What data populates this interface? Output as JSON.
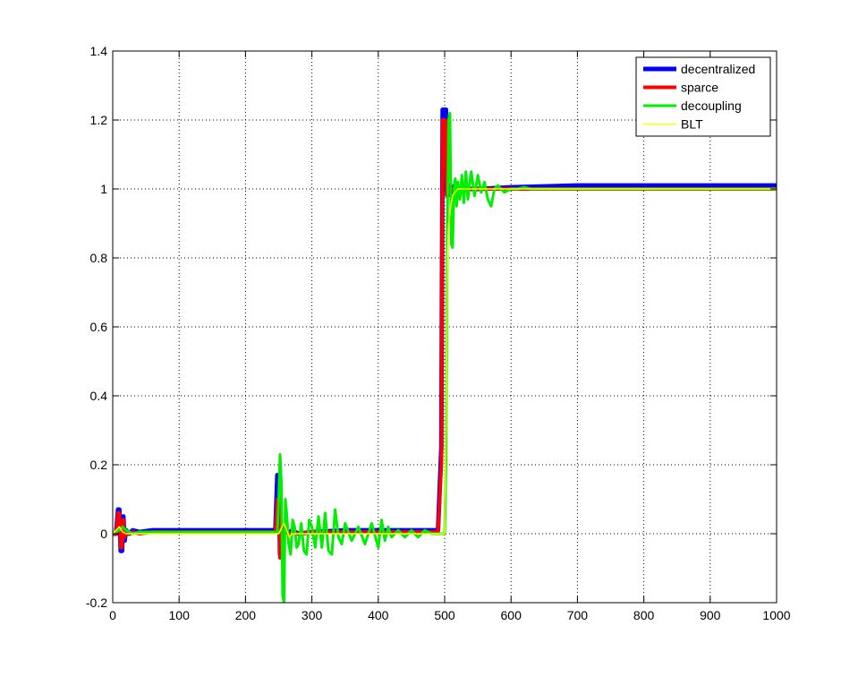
{
  "chart_data": {
    "type": "line",
    "title": "",
    "xlabel": "",
    "ylabel": "",
    "xlim": [
      0,
      1000
    ],
    "ylim": [
      -0.2,
      1.4
    ],
    "xticks": [
      0,
      100,
      200,
      300,
      400,
      500,
      600,
      700,
      800,
      900,
      1000
    ],
    "yticks": [
      -0.2,
      0,
      0.2,
      0.4,
      0.6,
      0.8,
      1,
      1.2,
      1.4
    ],
    "grid": true,
    "legend_position": "top-right",
    "series": [
      {
        "name": "decentralized",
        "color": "#0000ff",
        "x": [
          0,
          5,
          8,
          10,
          12,
          14,
          16,
          18,
          20,
          25,
          30,
          40,
          60,
          100,
          150,
          200,
          245,
          248,
          250,
          252,
          254,
          256,
          258,
          260,
          265,
          270,
          280,
          300,
          350,
          400,
          450,
          490,
          495,
          497,
          499,
          500,
          501,
          502,
          503,
          504,
          506,
          508,
          510,
          512,
          515,
          520,
          530,
          550,
          600,
          700,
          800,
          900,
          1000
        ],
        "y": [
          0,
          0,
          0.07,
          0.07,
          -0.05,
          -0.05,
          0.05,
          -0.02,
          0.01,
          0,
          0.01,
          0.005,
          0.01,
          0.01,
          0.01,
          0.01,
          0.01,
          0.17,
          0.17,
          -0.06,
          0.02,
          -0.01,
          0.005,
          0.01,
          0,
          0.01,
          0,
          0.005,
          0.01,
          0.01,
          0.01,
          0.01,
          0.25,
          1.23,
          1.23,
          1.23,
          1.23,
          1.23,
          1.0,
          0.98,
          1.01,
          1.0,
          0.99,
          1.0,
          1.01,
          1.0,
          1.0,
          1.0,
          1.005,
          1.01,
          1.01,
          1.01,
          1.01
        ]
      },
      {
        "name": "sparce",
        "color": "#ff0000",
        "x": [
          0,
          5,
          8,
          10,
          12,
          14,
          16,
          18,
          20,
          25,
          30,
          40,
          60,
          100,
          150,
          200,
          245,
          248,
          250,
          252,
          254,
          256,
          258,
          260,
          265,
          270,
          280,
          300,
          350,
          400,
          450,
          490,
          495,
          497,
          499,
          500,
          501,
          502,
          503,
          504,
          506,
          508,
          510,
          512,
          515,
          520,
          530,
          550,
          600,
          700,
          800,
          900,
          1000
        ],
        "y": [
          0,
          0,
          0.06,
          0.06,
          -0.04,
          -0.04,
          0.04,
          -0.01,
          0.005,
          0,
          0.005,
          0,
          0.005,
          0.005,
          0.005,
          0.005,
          0.005,
          0.1,
          0.1,
          -0.07,
          0.02,
          -0.02,
          0.01,
          0.005,
          0,
          0.005,
          0,
          0.005,
          0.005,
          0.005,
          0.005,
          0.005,
          0.2,
          1.2,
          1.2,
          1.2,
          1.2,
          1.1,
          0.98,
          0.99,
          1.0,
          0.99,
          1.0,
          1.0,
          1.0,
          1.0,
          1.0,
          1.0,
          1.0,
          1.0,
          1.0,
          1.0,
          1.0
        ]
      },
      {
        "name": "decoupling",
        "color": "#00ee00",
        "x": [
          0,
          5,
          10,
          15,
          20,
          25,
          30,
          40,
          60,
          100,
          150,
          200,
          248,
          250,
          252,
          254,
          256,
          258,
          260,
          262,
          265,
          268,
          271,
          274,
          277,
          280,
          284,
          288,
          292,
          296,
          300,
          305,
          310,
          315,
          320,
          325,
          330,
          335,
          340,
          345,
          350,
          360,
          370,
          380,
          390,
          400,
          405,
          410,
          415,
          420,
          430,
          440,
          450,
          460,
          470,
          480,
          490,
          495,
          500,
          502,
          504,
          506,
          508,
          510,
          512,
          514,
          516,
          518,
          520,
          523,
          526,
          529,
          532,
          535,
          540,
          545,
          550,
          555,
          560,
          565,
          570,
          575,
          580,
          590,
          600,
          610,
          620,
          630,
          640,
          650,
          700,
          800,
          900,
          1000
        ],
        "y": [
          0,
          0.005,
          0.01,
          0.02,
          0.01,
          0.005,
          0,
          0.005,
          0.005,
          0.005,
          0.005,
          0.005,
          0.005,
          0.1,
          0.23,
          0.15,
          -0.18,
          -0.2,
          0.1,
          0.06,
          -0.03,
          -0.06,
          0.04,
          0.02,
          -0.04,
          -0.03,
          0.03,
          -0.05,
          -0.06,
          0.04,
          0.02,
          -0.04,
          0.05,
          -0.04,
          0.06,
          -0.05,
          -0.06,
          0.07,
          -0.01,
          -0.03,
          0.03,
          -0.02,
          0.02,
          -0.03,
          0.03,
          -0.04,
          0.04,
          -0.02,
          0.02,
          -0.01,
          0.01,
          -0.01,
          0.01,
          -0.01,
          0.01,
          0,
          0,
          0,
          0,
          0.2,
          0.9,
          1.2,
          1.22,
          0.84,
          0.83,
          1.0,
          1.03,
          0.95,
          1.02,
          0.97,
          1.04,
          0.96,
          1.05,
          0.97,
          1.05,
          0.98,
          1.04,
          0.99,
          1.02,
          0.97,
          0.95,
          1.0,
          1.01,
          0.99,
          1.0,
          1.0,
          1.005,
          1.0,
          1.0,
          1.0,
          1.0,
          1.0,
          1.0,
          1.0
        ]
      },
      {
        "name": "BLT",
        "color": "#ffff00",
        "x": [
          0,
          5,
          10,
          15,
          20,
          30,
          40,
          60,
          100,
          150,
          200,
          250,
          255,
          258,
          262,
          266,
          270,
          280,
          300,
          350,
          400,
          450,
          490,
          495,
          500,
          502,
          504,
          506,
          508,
          510,
          512,
          515,
          520,
          525,
          530,
          540,
          550,
          600,
          700,
          800,
          900,
          1000
        ],
        "y": [
          0,
          0.01,
          0.02,
          0.005,
          0,
          0,
          0,
          0,
          0,
          0,
          0,
          0,
          0.02,
          0.03,
          0.01,
          -0.01,
          0,
          0,
          0,
          0,
          0,
          0,
          0,
          0,
          0,
          0.3,
          0.8,
          0.9,
          0.93,
          0.96,
          0.98,
          0.99,
          1.0,
          1.0,
          1.0,
          1.0,
          1.0,
          1.0,
          1.0,
          1.0,
          1.0,
          1.0
        ]
      }
    ]
  }
}
